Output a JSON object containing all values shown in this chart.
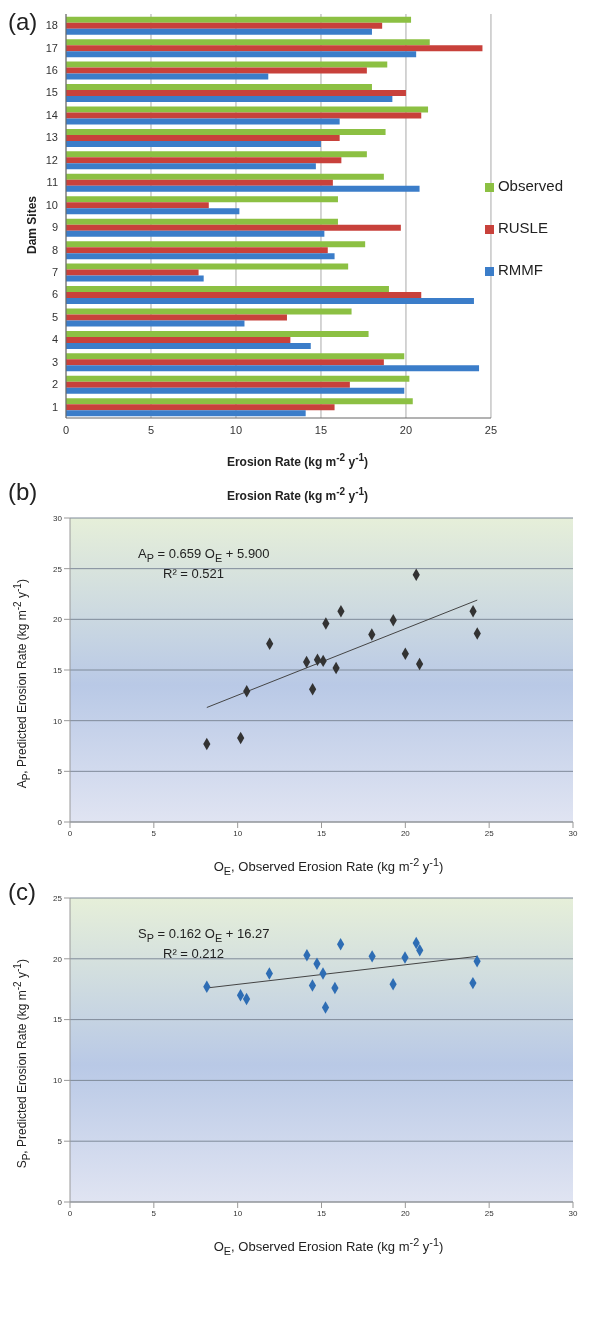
{
  "chart_data": [
    {
      "type": "bar",
      "orientation": "horizontal",
      "title": "(a)",
      "xlabel": "Erosion Rate (kg m$^{-2}$ y$^{-1}$)",
      "ylabel": "Dam Sites",
      "categories": [
        "18",
        "17",
        "16",
        "15",
        "14",
        "13",
        "12",
        "11",
        "10",
        "9",
        "8",
        "7",
        "6",
        "5",
        "4",
        "3",
        "2",
        "1"
      ],
      "series": [
        {
          "name": "Observed",
          "color": "#8cc043",
          "values": [
            20.3,
            21.4,
            18.9,
            18.0,
            21.3,
            18.8,
            17.7,
            18.7,
            16.0,
            16.0,
            17.6,
            16.6,
            19.0,
            16.8,
            17.8,
            19.9,
            20.2,
            20.4
          ]
        },
        {
          "name": "RUSLE",
          "color": "#c8413b",
          "values": [
            18.6,
            24.5,
            17.7,
            20.0,
            20.9,
            16.1,
            16.2,
            15.7,
            8.4,
            19.7,
            15.4,
            7.8,
            20.9,
            13.0,
            13.2,
            18.7,
            16.7,
            15.8
          ]
        },
        {
          "name": "RMMF",
          "color": "#3b7dc9",
          "values": [
            18.0,
            20.6,
            11.9,
            19.2,
            16.1,
            15.0,
            14.7,
            20.8,
            10.2,
            15.2,
            15.8,
            8.1,
            24.0,
            10.5,
            14.4,
            24.3,
            19.9,
            14.1
          ]
        }
      ],
      "xlim": [
        0,
        25
      ],
      "xticks": [
        0,
        5,
        10,
        15,
        20,
        25
      ],
      "grid": "x",
      "legend": "right"
    },
    {
      "type": "scatter",
      "title": "(b)",
      "subtitle": "Erosion Rate (kg m$^{-2}$ y$^{-1}$)",
      "xlabel": "O$_{E}$, Observed Erosion Rate (kg m$^{-2}$ y$^{-1}$)",
      "ylabel": "A$_{P}$, Predicted Erosion Rate (kg m$^{-2}$ y$^{-1}$)",
      "series": [
        {
          "color": "#333333",
          "marker": "diamond",
          "x": [
            8.16,
            10.18,
            10.54,
            11.91,
            14.11,
            14.47,
            14.76,
            15.1,
            15.26,
            15.87,
            16.16,
            18.0,
            19.28,
            20.0,
            20.65,
            20.85,
            24.04,
            24.29
          ],
          "values": [
            7.7,
            8.3,
            12.9,
            17.6,
            15.8,
            13.1,
            16.0,
            15.9,
            19.6,
            15.2,
            20.8,
            18.5,
            19.9,
            16.6,
            24.4,
            15.6,
            20.8,
            18.6
          ]
        },
        {
          "type": "line",
          "color": "#444444",
          "x": [
            8.16,
            24.29
          ],
          "values": [
            11.3,
            21.9
          ]
        }
      ],
      "annotations": [
        "A$_{P}$ = 0.659 O$_{E}$ + 5.900",
        "R² = 0.521"
      ],
      "xlim": [
        0,
        30
      ],
      "xticks": [
        0,
        5,
        10,
        15,
        20,
        25,
        30
      ],
      "ylim": [
        0,
        30
      ],
      "yticks": [
        0,
        5,
        10,
        15,
        20,
        25,
        30
      ],
      "grid": "y"
    },
    {
      "type": "scatter",
      "title": "(c)",
      "xlabel": "O$_{E}$, Observed Erosion Rate (kg m$^{-2}$ y$^{-1}$)",
      "ylabel": "S$_{P}$, Predicted Erosion Rate (kg m$^{-2}$ y$^{-1}$)",
      "series": [
        {
          "color": "#2e6db4",
          "marker": "diamond",
          "x": [
            8.16,
            10.17,
            10.53,
            11.89,
            14.13,
            14.46,
            14.73,
            15.09,
            15.24,
            15.8,
            16.14,
            18.02,
            19.27,
            19.98,
            20.65,
            20.86,
            24.03,
            24.28
          ],
          "values": [
            17.7,
            17.0,
            16.7,
            18.8,
            20.3,
            17.8,
            19.6,
            18.8,
            16.0,
            17.6,
            21.2,
            20.2,
            17.9,
            20.1,
            21.3,
            20.7,
            18.0,
            19.8
          ]
        },
        {
          "type": "line",
          "color": "#444444",
          "x": [
            8.16,
            24.28
          ],
          "values": [
            17.6,
            20.2
          ]
        }
      ],
      "annotations": [
        "S$_{P}$ = 0.162 O$_{E}$ + 16.27",
        "R² = 0.212"
      ],
      "xlim": [
        0,
        30
      ],
      "xticks": [
        0,
        5,
        10,
        15,
        20,
        25,
        30
      ],
      "ylim": [
        0,
        25
      ],
      "yticks": [
        0,
        5,
        10,
        15,
        20,
        25
      ],
      "grid": "y"
    }
  ]
}
